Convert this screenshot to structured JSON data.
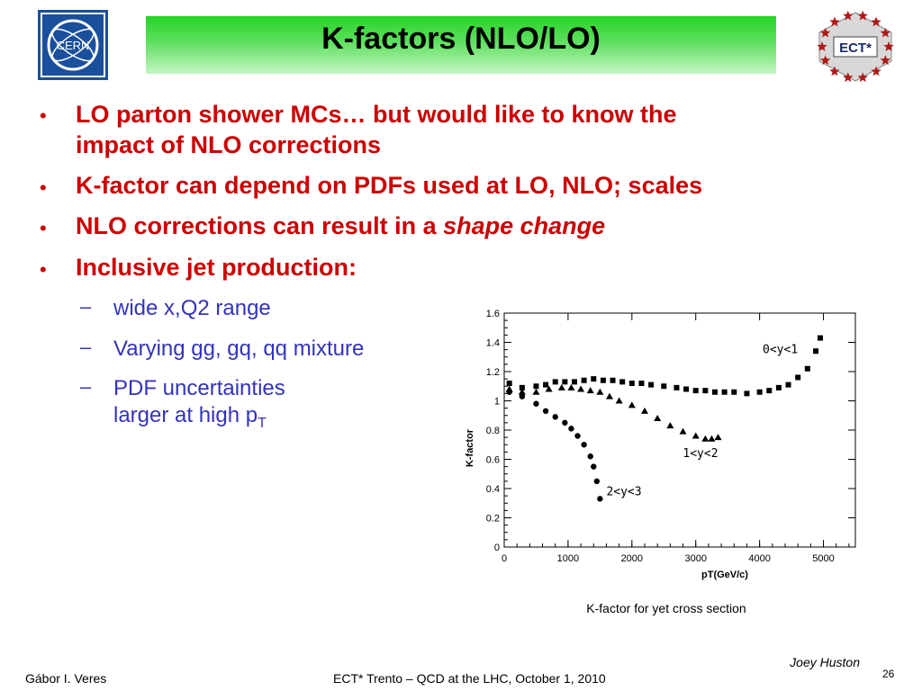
{
  "header": {
    "title": "K-factors (NLO/LO)"
  },
  "logos": {
    "cern_text": "CERN",
    "ect_text": "ECT*"
  },
  "bullets": [
    {
      "line1": "LO parton shower MCs… but would like to know the",
      "line2": "impact of NLO corrections"
    },
    {
      "text": "K-factor can depend on PDFs used at LO, NLO; scales"
    },
    {
      "text_normal": "NLO corrections can result in a ",
      "text_italic": "shape change"
    },
    {
      "text": "Inclusive jet production:"
    }
  ],
  "subbullets": [
    {
      "text": "wide x,Q2 range"
    },
    {
      "text": "Varying gg, gq, qq mixture"
    },
    {
      "line1": "PDF uncertainties",
      "line2": "larger at high p",
      "subscript": "T"
    }
  ],
  "chart_data": {
    "type": "scatter",
    "xlabel": "pT(GeV/c)",
    "ylabel": "K-factor",
    "xlim": [
      0,
      5500
    ],
    "ylim": [
      0,
      1.6
    ],
    "xticks": [
      "0",
      "1000",
      "2000",
      "3000",
      "4000",
      "5000"
    ],
    "yticks": [
      "0",
      "0.2",
      "0.4",
      "0.6",
      "0.8",
      "1",
      "1.2",
      "1.4",
      "1.6"
    ],
    "series": [
      {
        "name": "0<y<1",
        "marker": "square",
        "x": [
          80,
          280,
          500,
          650,
          800,
          950,
          1100,
          1250,
          1400,
          1550,
          1700,
          1850,
          2000,
          2150,
          2300,
          2500,
          2700,
          2850,
          3000,
          3150,
          3300,
          3450,
          3600,
          3800,
          4000,
          4150,
          4300,
          4450,
          4600,
          4750,
          4880,
          4950
        ],
        "y": [
          1.12,
          1.09,
          1.1,
          1.11,
          1.13,
          1.13,
          1.13,
          1.14,
          1.15,
          1.14,
          1.14,
          1.13,
          1.12,
          1.12,
          1.11,
          1.1,
          1.09,
          1.08,
          1.07,
          1.07,
          1.06,
          1.06,
          1.06,
          1.05,
          1.06,
          1.07,
          1.09,
          1.11,
          1.16,
          1.22,
          1.34,
          1.43
        ]
      },
      {
        "name": "1<y<2",
        "marker": "triangle",
        "x": [
          80,
          280,
          500,
          700,
          900,
          1050,
          1200,
          1350,
          1500,
          1650,
          1800,
          2000,
          2200,
          2400,
          2600,
          2800,
          3000,
          3150,
          3250,
          3350
        ],
        "y": [
          1.08,
          1.06,
          1.06,
          1.08,
          1.09,
          1.09,
          1.08,
          1.07,
          1.06,
          1.03,
          1.0,
          0.97,
          0.93,
          0.88,
          0.83,
          0.79,
          0.76,
          0.74,
          0.74,
          0.75
        ]
      },
      {
        "name": "2<y<3",
        "marker": "circle",
        "x": [
          80,
          280,
          500,
          650,
          800,
          950,
          1050,
          1150,
          1250,
          1350,
          1400,
          1450,
          1500
        ],
        "y": [
          1.06,
          1.03,
          0.98,
          0.93,
          0.89,
          0.85,
          0.81,
          0.76,
          0.7,
          0.62,
          0.55,
          0.45,
          0.33
        ]
      }
    ],
    "annotations": [
      "0<y<1",
      "1<y<2",
      "2<y<3"
    ]
  },
  "caption": "K-factor for yet cross section",
  "attribution": "Joey Huston",
  "footer": {
    "author": "Gábor I. Veres",
    "event": "ECT* Trento – QCD at the LHC, October 1, 2010",
    "page": "26"
  }
}
